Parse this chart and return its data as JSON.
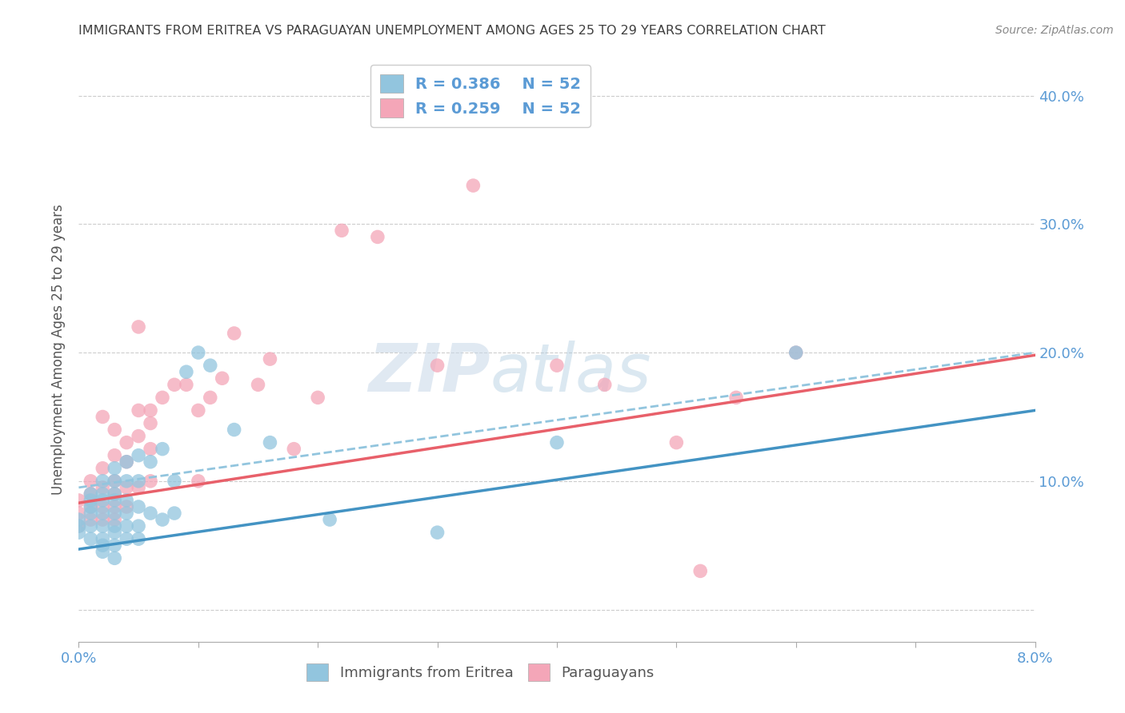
{
  "title": "IMMIGRANTS FROM ERITREA VS PARAGUAYAN UNEMPLOYMENT AMONG AGES 25 TO 29 YEARS CORRELATION CHART",
  "source": "Source: ZipAtlas.com",
  "ylabel": "Unemployment Among Ages 25 to 29 years",
  "yticks": [
    0.0,
    0.1,
    0.2,
    0.3,
    0.4
  ],
  "ytick_labels_right": [
    "",
    "10.0%",
    "20.0%",
    "30.0%",
    "40.0%"
  ],
  "xlim": [
    0.0,
    0.08
  ],
  "ylim": [
    -0.025,
    0.43
  ],
  "legend_r_blue": "R = 0.386",
  "legend_n_blue": "N = 52",
  "legend_r_pink": "R = 0.259",
  "legend_n_pink": "N = 52",
  "blue_color": "#92c5de",
  "pink_color": "#f4a6b8",
  "blue_line_color": "#4393c3",
  "pink_line_color": "#e8606a",
  "dashed_line_color": "#92c5de",
  "watermark_zip": "ZIP",
  "watermark_atlas": "atlas",
  "blue_scatter_x": [
    0.0,
    0.0,
    0.0,
    0.001,
    0.001,
    0.001,
    0.001,
    0.001,
    0.001,
    0.002,
    0.002,
    0.002,
    0.002,
    0.002,
    0.002,
    0.002,
    0.002,
    0.003,
    0.003,
    0.003,
    0.003,
    0.003,
    0.003,
    0.003,
    0.003,
    0.003,
    0.004,
    0.004,
    0.004,
    0.004,
    0.004,
    0.004,
    0.005,
    0.005,
    0.005,
    0.005,
    0.005,
    0.006,
    0.006,
    0.007,
    0.007,
    0.008,
    0.008,
    0.009,
    0.01,
    0.011,
    0.013,
    0.016,
    0.021,
    0.03,
    0.04,
    0.06
  ],
  "blue_scatter_y": [
    0.07,
    0.065,
    0.06,
    0.09,
    0.085,
    0.08,
    0.075,
    0.065,
    0.055,
    0.1,
    0.09,
    0.085,
    0.075,
    0.065,
    0.055,
    0.05,
    0.045,
    0.11,
    0.1,
    0.09,
    0.085,
    0.075,
    0.065,
    0.06,
    0.05,
    0.04,
    0.115,
    0.1,
    0.085,
    0.075,
    0.065,
    0.055,
    0.12,
    0.1,
    0.08,
    0.065,
    0.055,
    0.115,
    0.075,
    0.125,
    0.07,
    0.1,
    0.075,
    0.185,
    0.2,
    0.19,
    0.14,
    0.13,
    0.07,
    0.06,
    0.13,
    0.2
  ],
  "pink_scatter_x": [
    0.0,
    0.0,
    0.0,
    0.001,
    0.001,
    0.001,
    0.001,
    0.002,
    0.002,
    0.002,
    0.002,
    0.003,
    0.003,
    0.003,
    0.003,
    0.003,
    0.004,
    0.004,
    0.004,
    0.005,
    0.005,
    0.006,
    0.006,
    0.006,
    0.007,
    0.008,
    0.009,
    0.01,
    0.011,
    0.012,
    0.013,
    0.015,
    0.016,
    0.018,
    0.02,
    0.022,
    0.025,
    0.03,
    0.033,
    0.04,
    0.044,
    0.05,
    0.052,
    0.055,
    0.06,
    0.002,
    0.003,
    0.004,
    0.005,
    0.005,
    0.006,
    0.01
  ],
  "pink_scatter_y": [
    0.085,
    0.075,
    0.065,
    0.1,
    0.09,
    0.08,
    0.07,
    0.11,
    0.095,
    0.08,
    0.07,
    0.12,
    0.1,
    0.09,
    0.08,
    0.07,
    0.115,
    0.095,
    0.08,
    0.135,
    0.095,
    0.155,
    0.125,
    0.1,
    0.165,
    0.175,
    0.175,
    0.155,
    0.165,
    0.18,
    0.215,
    0.175,
    0.195,
    0.125,
    0.165,
    0.295,
    0.29,
    0.19,
    0.33,
    0.19,
    0.175,
    0.13,
    0.03,
    0.165,
    0.2,
    0.15,
    0.14,
    0.13,
    0.22,
    0.155,
    0.145,
    0.1
  ],
  "blue_line_x0": 0.0,
  "blue_line_y0": 0.047,
  "blue_line_x1": 0.08,
  "blue_line_y1": 0.155,
  "pink_line_x0": 0.0,
  "pink_line_y0": 0.083,
  "pink_line_x1": 0.08,
  "pink_line_y1": 0.198,
  "dashed_line_x0": 0.0,
  "dashed_line_y0": 0.095,
  "dashed_line_x1": 0.08,
  "dashed_line_y1": 0.2,
  "background_color": "#ffffff",
  "grid_color": "#cccccc",
  "title_color": "#404040",
  "axis_label_color": "#5b9bd5",
  "legend_text_color": "#5b9bd5"
}
